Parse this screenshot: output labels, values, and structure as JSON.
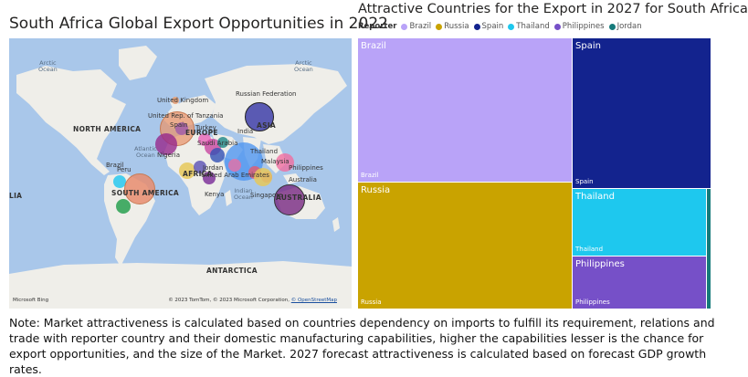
{
  "left_title": "South Africa Global Export Opportunities in 2022",
  "right_title": "Attractive Countries for the Export in 2027 for South Africa",
  "map": {
    "labels": {
      "arctic_left": "Arctic\nOcean",
      "arctic_right": "Arctic\nOcean",
      "north_america": "NORTH AMERICA",
      "atlantic": "Atlantic\nOcean",
      "south_america": "SOUTH AMERICA",
      "uk": "United Kingdom",
      "russia": "Russian Federation",
      "tanzania": "United Rep. of Tanzania",
      "spain": "Spain",
      "europe": "EUROPE",
      "turkey": "Turkey",
      "asia": "ASIA",
      "saudi": "Saudi Arabia",
      "india": "India",
      "thailand": "Thailand",
      "nigeria": "Nigeria",
      "uae": "United Arab Emirates",
      "africa": "AFRICA",
      "jordan": "Jordan",
      "malaysia": "Malaysia",
      "philippines": "Philippines",
      "peru": "Peru",
      "brazil": "Brazil",
      "kenya": "Kenya",
      "indian_ocean": "Indian\nOcean",
      "singapore": "Singapore",
      "australia_city": "Australia",
      "australia": "AUSTRALIA",
      "lia": "LIA",
      "antarctica": "ANTARCTICA"
    },
    "footer": "© 2023 TomTom, © 2023 Microsoft Corporation,",
    "footer_link": "© OpenStreetMap",
    "bing": "Microsoft Bing"
  },
  "legend": {
    "title": "Reporter",
    "items": [
      {
        "name": "Brazil",
        "color": "#b9a3f8"
      },
      {
        "name": "Russia",
        "color": "#c9a300"
      },
      {
        "name": "Spain",
        "color": "#13238e"
      },
      {
        "name": "Thailand",
        "color": "#1ec8ee"
      },
      {
        "name": "Philippines",
        "color": "#7650c8"
      },
      {
        "name": "Jordan",
        "color": "#157a7a"
      }
    ]
  },
  "chart_data": {
    "type": "treemap",
    "title": "Attractive Countries for the Export in 2027 for South Africa",
    "legend_title": "Reporter",
    "series": [
      {
        "name": "Brazil",
        "value": 35.8
      },
      {
        "name": "Russia",
        "value": 24.3
      },
      {
        "name": "Spain",
        "value": 21.9
      },
      {
        "name": "Thailand",
        "value": 8.9
      },
      {
        "name": "Philippines",
        "value": 7.5
      },
      {
        "name": "Jordan",
        "value": 1.6
      }
    ],
    "labels": {
      "brazil": "Brazil",
      "russia": "Russia",
      "spain": "Spain",
      "thailand": "Thailand",
      "philippines": "Philippines"
    }
  },
  "note": "Note: Market attractiveness is calculated based on countries dependency on imports to fulfill its requirement, relations and trade with reporter country and their domestic manufacturing capabilities, higher the capabilities lesser is the chance for export opportunities, and the size of the Market. 2027 forecast attractiveness is calculated based on forecast GDP growth rates."
}
